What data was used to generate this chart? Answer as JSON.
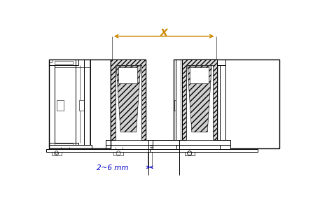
{
  "bg_color": "#ffffff",
  "lc": "#000000",
  "dim_color_x": "#cc8800",
  "dim_color_2mm": "#0000cc",
  "figsize": [
    4.57,
    2.9
  ],
  "dpi": 100,
  "x_label": "X",
  "dim_label": "2~6 mm"
}
